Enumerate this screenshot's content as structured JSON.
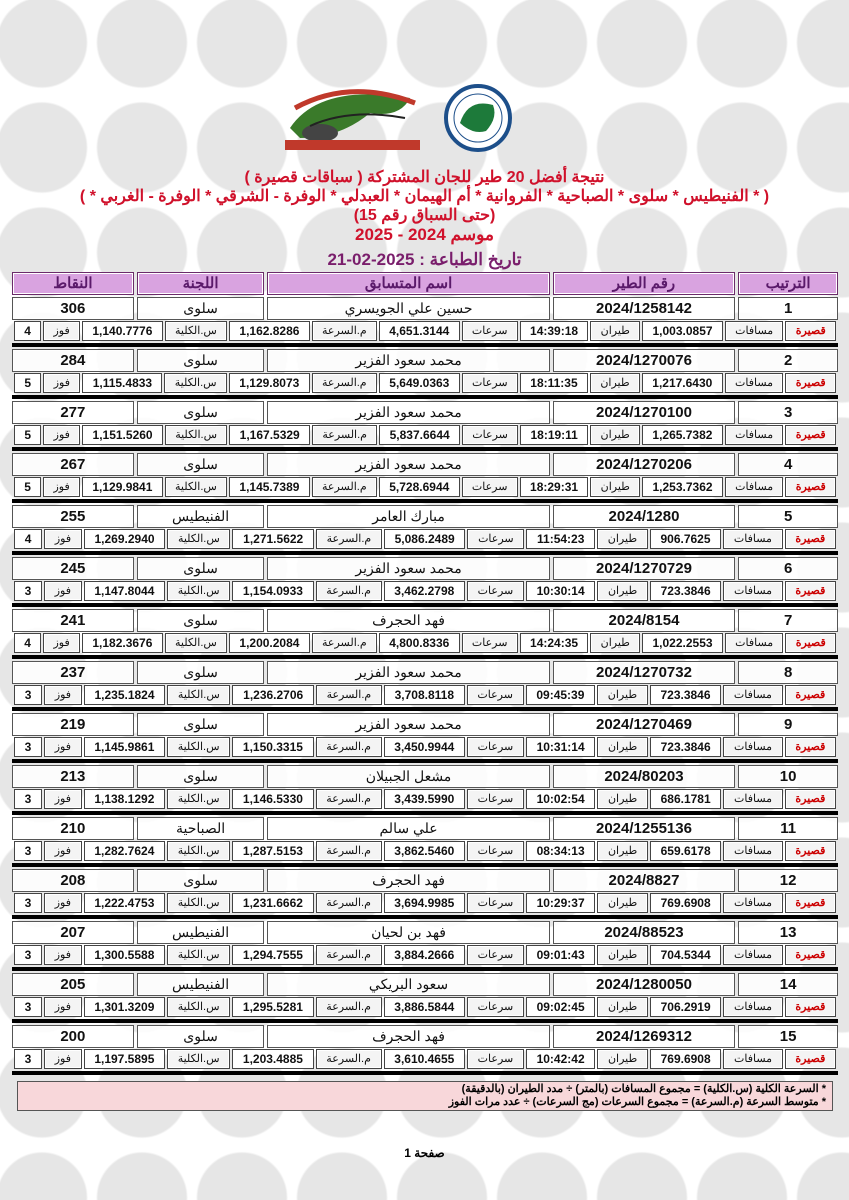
{
  "header": {
    "title": "نتيجة أفضل 20 طير للجان المشتركة ( سباقات قصيرة )",
    "committees_line": "( * الفنيطيس * سلوى * الصباحية * الفروانية * أم الهيمان * العبدلي * الوفرة - الشرقي * الوفرة - الغربي * )",
    "race_line": "(حتى السباق رقم 15)",
    "season": "موسم 2024 - 2025",
    "print_date": "تاريخ الطباعة : 2025-02-21"
  },
  "columns": {
    "rank": "الترتيب",
    "ring": "رقم الطير",
    "name": "اسم المتسابق",
    "committee": "اللجنة",
    "points": "النقاط"
  },
  "labels": {
    "type": "قصيرة",
    "distances": "مسافات",
    "flight": "طيران",
    "speeds": "سرعات",
    "avg_speed": "م.السرعة",
    "overall": "س.الكلية",
    "wins": "فوز"
  },
  "colors": {
    "title": "#d0112b",
    "header_bg": "#d9a3e0",
    "print_date": "#7a1e6c",
    "footer_bg": "#f8d7da"
  },
  "rows": [
    {
      "rank": "1",
      "ring": "2024/1258142",
      "name": "حسين علي الجويسري",
      "committee": "سلوى",
      "points": "306",
      "distance": "1,003.0857",
      "time": "14:39:18",
      "speeds": "4,651.3144",
      "avg": "1,162.8286",
      "overall": "1,140.7776",
      "wins": "4"
    },
    {
      "rank": "2",
      "ring": "2024/1270076",
      "name": "محمد سعود الفزير",
      "committee": "سلوى",
      "points": "284",
      "distance": "1,217.6430",
      "time": "18:11:35",
      "speeds": "5,649.0363",
      "avg": "1,129.8073",
      "overall": "1,115.4833",
      "wins": "5"
    },
    {
      "rank": "3",
      "ring": "2024/1270100",
      "name": "محمد سعود الفزير",
      "committee": "سلوى",
      "points": "277",
      "distance": "1,265.7382",
      "time": "18:19:11",
      "speeds": "5,837.6644",
      "avg": "1,167.5329",
      "overall": "1,151.5260",
      "wins": "5"
    },
    {
      "rank": "4",
      "ring": "2024/1270206",
      "name": "محمد سعود الفزير",
      "committee": "سلوى",
      "points": "267",
      "distance": "1,253.7362",
      "time": "18:29:31",
      "speeds": "5,728.6944",
      "avg": "1,145.7389",
      "overall": "1,129.9841",
      "wins": "5"
    },
    {
      "rank": "5",
      "ring": "2024/1280",
      "name": "مبارك العامر",
      "committee": "الفنيطيس",
      "points": "255",
      "distance": "906.7625",
      "time": "11:54:23",
      "speeds": "5,086.2489",
      "avg": "1,271.5622",
      "overall": "1,269.2940",
      "wins": "4"
    },
    {
      "rank": "6",
      "ring": "2024/1270729",
      "name": "محمد سعود الفزير",
      "committee": "سلوى",
      "points": "245",
      "distance": "723.3846",
      "time": "10:30:14",
      "speeds": "3,462.2798",
      "avg": "1,154.0933",
      "overall": "1,147.8044",
      "wins": "3"
    },
    {
      "rank": "7",
      "ring": "2024/8154",
      "name": "فهد الحجرف",
      "committee": "سلوى",
      "points": "241",
      "distance": "1,022.2553",
      "time": "14:24:35",
      "speeds": "4,800.8336",
      "avg": "1,200.2084",
      "overall": "1,182.3676",
      "wins": "4"
    },
    {
      "rank": "8",
      "ring": "2024/1270732",
      "name": "محمد سعود الفزير",
      "committee": "سلوى",
      "points": "237",
      "distance": "723.3846",
      "time": "09:45:39",
      "speeds": "3,708.8118",
      "avg": "1,236.2706",
      "overall": "1,235.1824",
      "wins": "3"
    },
    {
      "rank": "9",
      "ring": "2024/1270469",
      "name": "محمد سعود الفزير",
      "committee": "سلوى",
      "points": "219",
      "distance": "723.3846",
      "time": "10:31:14",
      "speeds": "3,450.9944",
      "avg": "1,150.3315",
      "overall": "1,145.9861",
      "wins": "3"
    },
    {
      "rank": "10",
      "ring": "2024/80203",
      "name": "مشعل الجبيلان",
      "committee": "سلوى",
      "points": "213",
      "distance": "686.1781",
      "time": "10:02:54",
      "speeds": "3,439.5990",
      "avg": "1,146.5330",
      "overall": "1,138.1292",
      "wins": "3"
    },
    {
      "rank": "11",
      "ring": "2024/1255136",
      "name": "علي سالم",
      "committee": "الصباحية",
      "points": "210",
      "distance": "659.6178",
      "time": "08:34:13",
      "speeds": "3,862.5460",
      "avg": "1,287.5153",
      "overall": "1,282.7624",
      "wins": "3"
    },
    {
      "rank": "12",
      "ring": "2024/8827",
      "name": "فهد الحجرف",
      "committee": "سلوى",
      "points": "208",
      "distance": "769.6908",
      "time": "10:29:37",
      "speeds": "3,694.9985",
      "avg": "1,231.6662",
      "overall": "1,222.4753",
      "wins": "3"
    },
    {
      "rank": "13",
      "ring": "2024/88523",
      "name": "فهد بن لحيان",
      "committee": "الفنيطيس",
      "points": "207",
      "distance": "704.5344",
      "time": "09:01:43",
      "speeds": "3,884.2666",
      "avg": "1,294.7555",
      "overall": "1,300.5588",
      "wins": "3"
    },
    {
      "rank": "14",
      "ring": "2024/1280050",
      "name": "سعود البريكي",
      "committee": "الفنيطيس",
      "points": "205",
      "distance": "706.2919",
      "time": "09:02:45",
      "speeds": "3,886.5844",
      "avg": "1,295.5281",
      "overall": "1,301.3209",
      "wins": "3"
    },
    {
      "rank": "15",
      "ring": "2024/1269312",
      "name": "فهد الحجرف",
      "committee": "سلوى",
      "points": "200",
      "distance": "769.6908",
      "time": "10:42:42",
      "speeds": "3,610.4655",
      "avg": "1,203.4885",
      "overall": "1,197.5895",
      "wins": "3"
    }
  ],
  "footer": {
    "note1": "* السرعة الكلية (س.الكلية) = مجموع المسافات (بالمتر) ÷ مدد الطيران (بالدقيقة)",
    "note2": "* متوسط السرعة (م.السرعة) = مجموع السرعات (مج السرعات) ÷ عدد مرات الفوز",
    "page": "صفحة 1"
  }
}
